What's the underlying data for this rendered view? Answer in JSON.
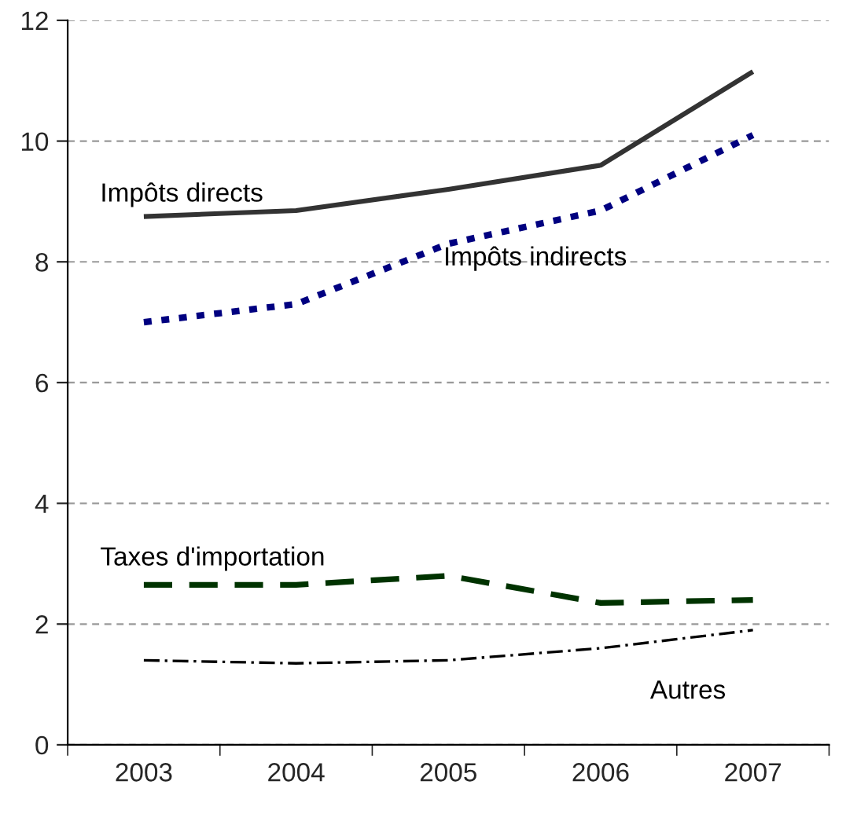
{
  "chart_data": {
    "type": "line",
    "categories": [
      "2003",
      "2004",
      "2005",
      "2006",
      "2007"
    ],
    "series": [
      {
        "name": "Impôts directs",
        "color": "#333333",
        "line_style": "solid",
        "values": [
          8.75,
          8.85,
          9.2,
          9.6,
          11.15
        ]
      },
      {
        "name": "Impôts indirects",
        "color": "#000080",
        "line_style": "dotted",
        "values": [
          7.0,
          7.3,
          8.3,
          8.85,
          10.1
        ]
      },
      {
        "name": "Taxes d'importation",
        "color": "#003300",
        "line_style": "dashed",
        "values": [
          2.65,
          2.65,
          2.8,
          2.35,
          2.4
        ]
      },
      {
        "name": "Autres",
        "color": "#000000",
        "line_style": "dashdot",
        "values": [
          1.4,
          1.35,
          1.4,
          1.6,
          1.9
        ]
      }
    ],
    "ylim": [
      0,
      12
    ],
    "yticks": [
      0,
      2,
      4,
      6,
      8,
      10,
      12
    ],
    "grid": "y",
    "legend": false,
    "marker": "none"
  }
}
